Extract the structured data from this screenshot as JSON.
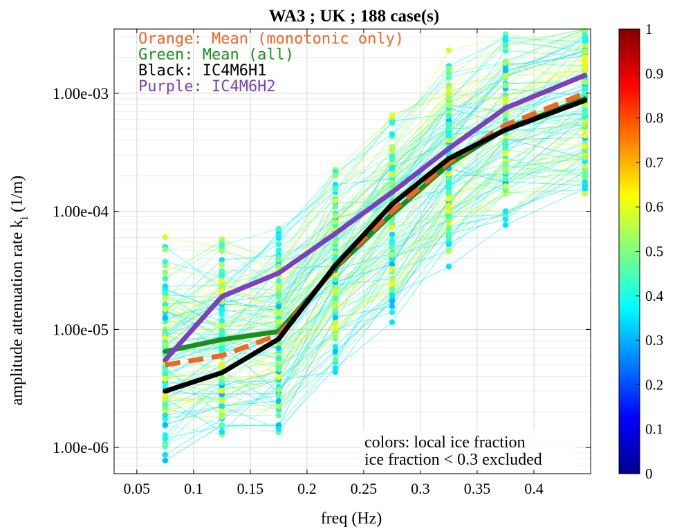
{
  "chart_data": {
    "type": "line",
    "title": "WA3   ; UK ; 188 case(s)",
    "xlabel": "freq (Hz)",
    "ylabel": "amplitude attenuation rate k",
    "ylabel_subscript": "i",
    "ylabel_unit": "(1/m)",
    "x_scale": "linear",
    "y_scale": "log",
    "xlim": [
      0.03,
      0.45
    ],
    "ylim": [
      6e-07,
      0.0035
    ],
    "grid": true,
    "x_ticks": [
      0.05,
      0.1,
      0.15,
      0.2,
      0.25,
      0.3,
      0.35,
      0.4
    ],
    "x_tick_labels": [
      "0.05",
      "0.1",
      "0.15",
      "0.2",
      "0.25",
      "0.3",
      "0.35",
      "0.4"
    ],
    "y_ticks": [
      1e-06,
      1e-05,
      0.0001,
      0.001
    ],
    "y_tick_labels": [
      "1.00e-06",
      "1.00e-05",
      "1.00e-04",
      "1.00e-03"
    ],
    "legend": {
      "placement": "top-left",
      "entries": [
        {
          "text": "Orange: Mean (monotonic only)",
          "color": "#f26522"
        },
        {
          "text": "Green: Mean (all)",
          "color": "#1a8f1a"
        },
        {
          "text": "Black: IC4M6H1",
          "color": "#000000"
        },
        {
          "text": "Purple: IC4M6H2",
          "color": "#7b3fbf"
        }
      ]
    },
    "annotations": [
      "colors: local ice fraction",
      "ice fraction < 0.3 excluded"
    ],
    "colorbar": {
      "colormap": "jet",
      "range": [
        0,
        1
      ],
      "ticks": [
        "0",
        "0.1",
        "0.2",
        "0.3",
        "0.4",
        "0.5",
        "0.6",
        "0.7",
        "0.8",
        "0.9",
        "1"
      ]
    },
    "x": [
      0.075,
      0.125,
      0.175,
      0.225,
      0.275,
      0.325,
      0.375,
      0.445
    ],
    "series": [
      {
        "name": "Orange: Mean (monotonic only)",
        "color": "#f26522",
        "style": "dashed",
        "values": [
          5e-06,
          6e-06,
          9e-06,
          3.4e-05,
          0.0001,
          0.00026,
          0.00054,
          0.001
        ]
      },
      {
        "name": "Green: Mean (all)",
        "color": "#1a8f1a",
        "style": "solid",
        "values": [
          6.5e-06,
          8.2e-06,
          9.6e-06,
          3.3e-05,
          9.5e-05,
          0.00025,
          0.0005,
          0.0009
        ]
      },
      {
        "name": "Black: IC4M6H1",
        "color": "#000000",
        "style": "solid",
        "values": [
          3e-06,
          4.3e-06,
          8.3e-06,
          3.5e-05,
          0.000115,
          0.00028,
          0.00049,
          0.00087
        ]
      },
      {
        "name": "Purple: IC4M6H2",
        "color": "#7b3fbf",
        "style": "solid",
        "values": [
          5.5e-06,
          1.9e-05,
          3e-05,
          6.5e-05,
          0.000145,
          0.00034,
          0.00075,
          0.00142
        ]
      }
    ]
  }
}
